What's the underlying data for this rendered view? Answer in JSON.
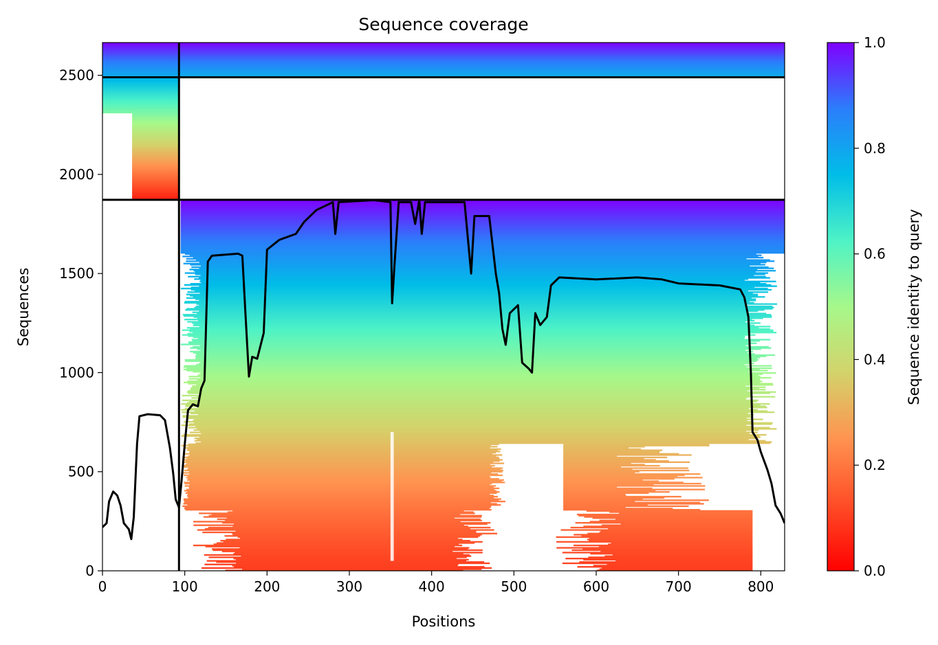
{
  "chart_data": {
    "type": "heatmap",
    "title": "Sequence coverage",
    "xlabel": "Positions",
    "ylabel": "Sequences",
    "colorbar_label": "Sequence identity to query",
    "xlim": [
      0,
      829
    ],
    "ylim": [
      0,
      2665
    ],
    "x_ticks": [
      0,
      100,
      200,
      300,
      400,
      500,
      600,
      700,
      800
    ],
    "y_ticks": [
      0,
      500,
      1000,
      1500,
      2000,
      2500
    ],
    "colorbar_ticks": [
      "0.0",
      "0.2",
      "0.4",
      "0.6",
      "0.8",
      "1.0"
    ],
    "colormap": "rainbow_r",
    "chain_boundaries": {
      "x": [
        93
      ],
      "y": [
        1872,
        2490
      ]
    },
    "coverage_line": {
      "color": "#000000",
      "points": [
        [
          0,
          220
        ],
        [
          5,
          240
        ],
        [
          8,
          350
        ],
        [
          13,
          400
        ],
        [
          18,
          380
        ],
        [
          22,
          330
        ],
        [
          26,
          240
        ],
        [
          32,
          210
        ],
        [
          35,
          160
        ],
        [
          38,
          270
        ],
        [
          42,
          640
        ],
        [
          45,
          780
        ],
        [
          55,
          790
        ],
        [
          70,
          785
        ],
        [
          76,
          760
        ],
        [
          82,
          620
        ],
        [
          86,
          490
        ],
        [
          89,
          360
        ],
        [
          93,
          320
        ],
        [
          96,
          450
        ],
        [
          100,
          640
        ],
        [
          104,
          810
        ],
        [
          110,
          840
        ],
        [
          116,
          830
        ],
        [
          120,
          920
        ],
        [
          124,
          960
        ],
        [
          128,
          1560
        ],
        [
          133,
          1590
        ],
        [
          165,
          1600
        ],
        [
          170,
          1590
        ],
        [
          174,
          1280
        ],
        [
          178,
          980
        ],
        [
          182,
          1080
        ],
        [
          188,
          1070
        ],
        [
          196,
          1200
        ],
        [
          200,
          1620
        ],
        [
          215,
          1670
        ],
        [
          235,
          1700
        ],
        [
          245,
          1760
        ],
        [
          260,
          1820
        ],
        [
          280,
          1860
        ],
        [
          283,
          1700
        ],
        [
          287,
          1860
        ],
        [
          330,
          1870
        ],
        [
          350,
          1860
        ],
        [
          352,
          1350
        ],
        [
          355,
          1550
        ],
        [
          360,
          1860
        ],
        [
          375,
          1860
        ],
        [
          380,
          1750
        ],
        [
          385,
          1870
        ],
        [
          388,
          1700
        ],
        [
          392,
          1860
        ],
        [
          440,
          1860
        ],
        [
          448,
          1500
        ],
        [
          452,
          1790
        ],
        [
          470,
          1790
        ],
        [
          478,
          1500
        ],
        [
          482,
          1400
        ],
        [
          486,
          1220
        ],
        [
          490,
          1140
        ],
        [
          495,
          1300
        ],
        [
          505,
          1340
        ],
        [
          510,
          1050
        ],
        [
          518,
          1020
        ],
        [
          522,
          1000
        ],
        [
          526,
          1300
        ],
        [
          532,
          1240
        ],
        [
          540,
          1280
        ],
        [
          545,
          1440
        ],
        [
          555,
          1480
        ],
        [
          600,
          1470
        ],
        [
          650,
          1480
        ],
        [
          680,
          1470
        ],
        [
          700,
          1450
        ],
        [
          750,
          1440
        ],
        [
          775,
          1420
        ],
        [
          780,
          1380
        ],
        [
          785,
          1280
        ],
        [
          788,
          1000
        ],
        [
          790,
          700
        ],
        [
          796,
          660
        ],
        [
          800,
          600
        ],
        [
          808,
          510
        ],
        [
          813,
          440
        ],
        [
          818,
          330
        ],
        [
          824,
          290
        ],
        [
          829,
          240
        ]
      ]
    }
  }
}
